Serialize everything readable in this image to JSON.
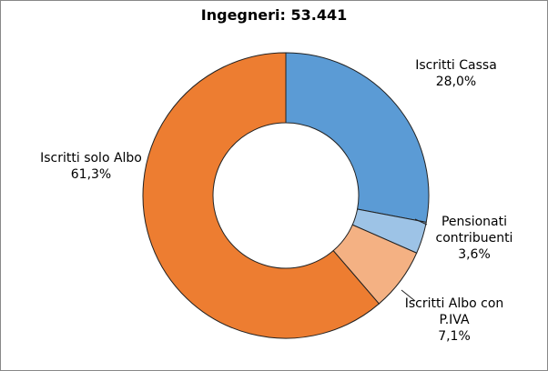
{
  "chart_data": {
    "type": "pie",
    "title": "Ingegneri: 53.441",
    "categories": [
      "Iscritti Cassa",
      "Pensionati contribuenti",
      "Iscritti Albo con P.IVA",
      "Iscritti solo Albo"
    ],
    "values": [
      28.0,
      3.6,
      7.1,
      61.3
    ],
    "value_labels": [
      "28,0%",
      "3,6%",
      "7,1%",
      "61,3%"
    ],
    "colors": [
      "#5b9bd5",
      "#9dc3e6",
      "#f4b183",
      "#ed7d31"
    ],
    "donut": true
  }
}
